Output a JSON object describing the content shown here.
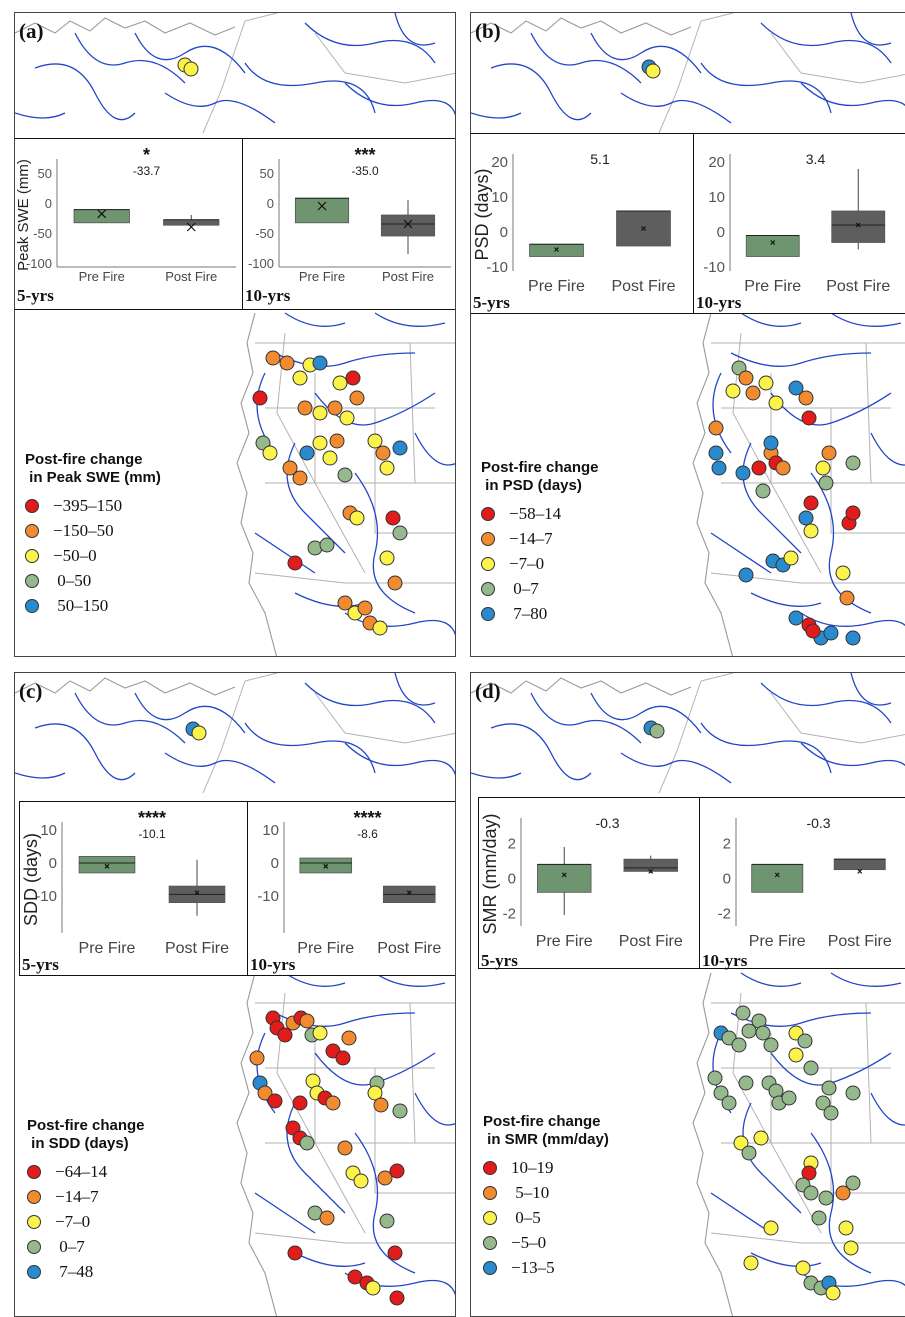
{
  "colors": {
    "pre": "#6e9470",
    "post": "#5e5e5e",
    "river": "#2346c9",
    "border": "#b3b3b3",
    "red": "#e21b1b",
    "orange": "#f28a30",
    "yellow": "#fbf34a",
    "green": "#96b88d",
    "blue": "#2a8ad0"
  },
  "panels": [
    {
      "label": "(a)",
      "legend": {
        "title": "Post-fire change\n in Peak SWE (mm)",
        "items": [
          {
            "label": "−395–150",
            "color": "red"
          },
          {
            "label": "−150–50",
            "color": "orange"
          },
          {
            "label": "−50–0",
            "color": "yellow"
          },
          {
            "label": " 0–50",
            "color": "green"
          },
          {
            "label": " 50–150",
            "color": "blue"
          }
        ]
      },
      "insets": [
        {
          "period": "5-yrs",
          "ylabel": "Peak SWE (mm)",
          "ticks": [
            "50",
            "0",
            "-50",
            "-100"
          ],
          "sig": "*",
          "diff": "-33.7"
        },
        {
          "period": "10-yrs",
          "ylabel": "",
          "ticks": [
            "50",
            "0",
            "-50",
            "-100"
          ],
          "sig": "***",
          "diff": "-35.0"
        }
      ]
    },
    {
      "label": "(b)",
      "legend": {
        "title": "Post-fire change\n in PSD (days)",
        "items": [
          {
            "label": "−58–14",
            "color": "red"
          },
          {
            "label": "−14–7",
            "color": "orange"
          },
          {
            "label": "−7–0",
            "color": "yellow"
          },
          {
            "label": " 0–7",
            "color": "green"
          },
          {
            "label": " 7–80",
            "color": "blue"
          }
        ]
      },
      "insets": [
        {
          "period": "5-yrs",
          "ylabel": "PSD (days)",
          "ticks": [
            "20",
            "10",
            "0",
            "-10"
          ],
          "sig": "",
          "diff": "5.1"
        },
        {
          "period": "10-yrs",
          "ylabel": "",
          "ticks": [
            "20",
            "10",
            "0",
            "-10"
          ],
          "sig": "",
          "diff": "3.4"
        }
      ]
    },
    {
      "label": "(c)",
      "legend": {
        "title": "Post-fire change\n in SDD (days)",
        "items": [
          {
            "label": "−64–14",
            "color": "red"
          },
          {
            "label": "−14–7",
            "color": "orange"
          },
          {
            "label": "−7–0",
            "color": "yellow"
          },
          {
            "label": " 0–7",
            "color": "green"
          },
          {
            "label": " 7–48",
            "color": "blue"
          }
        ]
      },
      "insets": [
        {
          "period": "5-yrs",
          "ylabel": "SDD (days)",
          "ticks": [
            "10",
            "0",
            "-10"
          ],
          "sig": "****",
          "diff": "-10.1"
        },
        {
          "period": "10-yrs",
          "ylabel": "",
          "ticks": [
            "10",
            "0",
            "-10"
          ],
          "sig": "****",
          "diff": "-8.6"
        }
      ]
    },
    {
      "label": "(d)",
      "legend": {
        "title": "Post-fire change\n in SMR (mm/day)",
        "items": [
          {
            "label": "10–19",
            "color": "red"
          },
          {
            "label": " 5–10",
            "color": "orange"
          },
          {
            "label": " 0–5",
            "color": "yellow"
          },
          {
            "label": "−5–0",
            "color": "green"
          },
          {
            "label": "−13–5",
            "color": "blue"
          }
        ]
      },
      "insets": [
        {
          "period": "5-yrs",
          "ylabel": "SMR (mm/day)",
          "ticks": [
            "2",
            "0",
            "-2"
          ],
          "sig": "",
          "diff": "-0.3"
        },
        {
          "period": "10-yrs",
          "ylabel": "",
          "ticks": [
            "2",
            "0",
            "-2"
          ],
          "sig": "",
          "diff": "-0.3"
        }
      ]
    }
  ],
  "chart_data": [
    {
      "type": "box",
      "panel": "(a)",
      "period": "5-yrs",
      "ylabel": "Peak SWE (mm)",
      "ylim": [
        -100,
        60
      ],
      "categories": [
        "Pre Fire",
        "Post Fire"
      ],
      "boxes": [
        {
          "category": "Pre Fire",
          "q1": -33,
          "median": -11,
          "q3": -11,
          "min": -33,
          "max": -11,
          "mean": -18
        },
        {
          "category": "Post Fire",
          "q1": -37,
          "median": -28,
          "q3": -28,
          "min": -37,
          "max": -20,
          "mean": -40
        }
      ]
    },
    {
      "type": "box",
      "panel": "(a)",
      "period": "10-yrs",
      "ylim": [
        -100,
        60
      ],
      "categories": [
        "Pre Fire",
        "Post Fire"
      ],
      "boxes": [
        {
          "category": "Pre Fire",
          "q1": -33,
          "median": 8,
          "q3": 8,
          "min": -33,
          "max": 8,
          "mean": -5
        },
        {
          "category": "Post Fire",
          "q1": -55,
          "median": -35,
          "q3": -20,
          "min": -85,
          "max": 5,
          "mean": -35
        }
      ]
    },
    {
      "type": "box",
      "panel": "(b)",
      "period": "5-yrs",
      "ylabel": "PSD (days)",
      "ylim": [
        -10,
        20
      ],
      "categories": [
        "Pre Fire",
        "Post Fire"
      ],
      "boxes": [
        {
          "category": "Pre Fire",
          "q1": -7,
          "median": -3.5,
          "q3": -3.5,
          "min": -7,
          "max": -3.5,
          "mean": -5
        },
        {
          "category": "Post Fire",
          "q1": -4,
          "median": 6,
          "q3": 6,
          "min": -4,
          "max": 6,
          "mean": 1
        }
      ]
    },
    {
      "type": "box",
      "panel": "(b)",
      "period": "10-yrs",
      "ylim": [
        -10,
        20
      ],
      "categories": [
        "Pre Fire",
        "Post Fire"
      ],
      "boxes": [
        {
          "category": "Pre Fire",
          "q1": -7,
          "median": -1,
          "q3": -1,
          "min": -7,
          "max": -1,
          "mean": -3
        },
        {
          "category": "Post Fire",
          "q1": -3,
          "median": 2,
          "q3": 6,
          "min": -5,
          "max": 18,
          "mean": 2
        }
      ]
    },
    {
      "type": "box",
      "panel": "(c)",
      "period": "5-yrs",
      "ylabel": "SDD (days)",
      "ylim": [
        -20,
        10
      ],
      "categories": [
        "Pre Fire",
        "Post Fire"
      ],
      "boxes": [
        {
          "category": "Pre Fire",
          "q1": -3,
          "median": 0,
          "q3": 2,
          "min": -3,
          "max": 2,
          "mean": -1
        },
        {
          "category": "Post Fire",
          "q1": -12,
          "median": -9.5,
          "q3": -7,
          "min": -16,
          "max": 1,
          "mean": -9
        }
      ]
    },
    {
      "type": "box",
      "panel": "(c)",
      "period": "10-yrs",
      "ylim": [
        -20,
        10
      ],
      "categories": [
        "Pre Fire",
        "Post Fire"
      ],
      "boxes": [
        {
          "category": "Pre Fire",
          "q1": -3,
          "median": 0,
          "q3": 1.5,
          "min": -3,
          "max": 1.5,
          "mean": -1
        },
        {
          "category": "Post Fire",
          "q1": -12,
          "median": -9.5,
          "q3": -7,
          "min": -12,
          "max": -7,
          "mean": -9
        }
      ]
    },
    {
      "type": "box",
      "panel": "(d)",
      "period": "5-yrs",
      "ylabel": "SMR (mm/day)",
      "ylim": [
        -2.5,
        3
      ],
      "categories": [
        "Pre Fire",
        "Post Fire"
      ],
      "boxes": [
        {
          "category": "Pre Fire",
          "q1": -0.8,
          "median": 0.8,
          "q3": 0.8,
          "min": -2.1,
          "max": 1.8,
          "mean": 0.2
        },
        {
          "category": "Post Fire",
          "q1": 0.4,
          "median": 0.6,
          "q3": 1.1,
          "min": 0.3,
          "max": 1.3,
          "mean": 0.4
        }
      ]
    },
    {
      "type": "box",
      "panel": "(d)",
      "period": "10-yrs",
      "ylim": [
        -2.5,
        3
      ],
      "categories": [
        "Pre Fire",
        "Post Fire"
      ],
      "boxes": [
        {
          "category": "Pre Fire",
          "q1": -0.8,
          "median": 0.8,
          "q3": 0.8,
          "min": -0.8,
          "max": 0.8,
          "mean": 0.2
        },
        {
          "category": "Post Fire",
          "q1": 0.5,
          "median": 1.1,
          "q3": 1.1,
          "min": 0.5,
          "max": 1.1,
          "mean": 0.4
        }
      ]
    }
  ]
}
